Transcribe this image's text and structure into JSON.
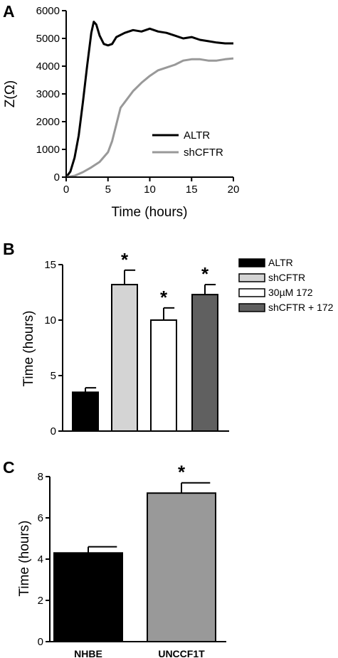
{
  "chart_data": [
    {
      "panel": "A",
      "type": "line",
      "xlabel": "Time (hours)",
      "ylabel": "Z(Ω)",
      "xlim": [
        0,
        20
      ],
      "ylim": [
        0,
        6000
      ],
      "xticks": [
        0,
        5,
        10,
        15,
        20
      ],
      "yticks": [
        0,
        1000,
        2000,
        3000,
        4000,
        5000,
        6000
      ],
      "legend_position": "bottom-right",
      "series": [
        {
          "name": "ALTR",
          "color": "#000000",
          "x": [
            0,
            0.5,
            1,
            1.5,
            2,
            2.5,
            3,
            3.3,
            3.6,
            4,
            4.5,
            5,
            5.5,
            6,
            7,
            8,
            9,
            10,
            11,
            12,
            13,
            14,
            15,
            16,
            17,
            18,
            19,
            20
          ],
          "y": [
            0,
            200,
            700,
            1500,
            2700,
            4000,
            5200,
            5600,
            5500,
            5100,
            4800,
            4750,
            4800,
            5050,
            5200,
            5300,
            5250,
            5350,
            5250,
            5200,
            5100,
            5000,
            5050,
            4950,
            4900,
            4850,
            4820,
            4820
          ]
        },
        {
          "name": "shCFTR",
          "color": "#999999",
          "x": [
            0,
            1,
            2,
            3,
            4,
            5,
            5.5,
            6,
            6.5,
            7,
            8,
            9,
            10,
            11,
            12,
            13,
            14,
            15,
            16,
            17,
            18,
            19,
            20
          ],
          "y": [
            0,
            50,
            180,
            350,
            550,
            900,
            1300,
            1900,
            2500,
            2700,
            3100,
            3400,
            3650,
            3850,
            3950,
            4050,
            4200,
            4250,
            4250,
            4200,
            4200,
            4250,
            4280
          ]
        }
      ]
    },
    {
      "panel": "B",
      "type": "bar",
      "xlabel": "",
      "ylabel": "Time (hours)",
      "ylim": [
        0,
        15
      ],
      "yticks": [
        0,
        5,
        10,
        15
      ],
      "legend_position": "right",
      "categories": [
        "ALTR",
        "shCFTR",
        "30µM 172",
        "shCFTR + 172"
      ],
      "values": [
        3.5,
        13.2,
        10.0,
        12.3
      ],
      "errors": [
        0.4,
        1.3,
        1.1,
        0.9
      ],
      "colors": [
        "#000000",
        "#d4d4d4",
        "#ffffff",
        "#606060"
      ],
      "significance": [
        "",
        "*",
        "*",
        "*"
      ]
    },
    {
      "panel": "C",
      "type": "bar",
      "xlabel": "",
      "ylabel": "Time (hours)",
      "ylim": [
        0,
        8
      ],
      "yticks": [
        0,
        2,
        4,
        6,
        8
      ],
      "categories": [
        "NHBE",
        "UNCCF1T"
      ],
      "values": [
        4.3,
        7.2
      ],
      "errors": [
        0.3,
        0.5
      ],
      "colors": [
        "#000000",
        "#999999"
      ],
      "significance": [
        "",
        "*"
      ]
    }
  ]
}
